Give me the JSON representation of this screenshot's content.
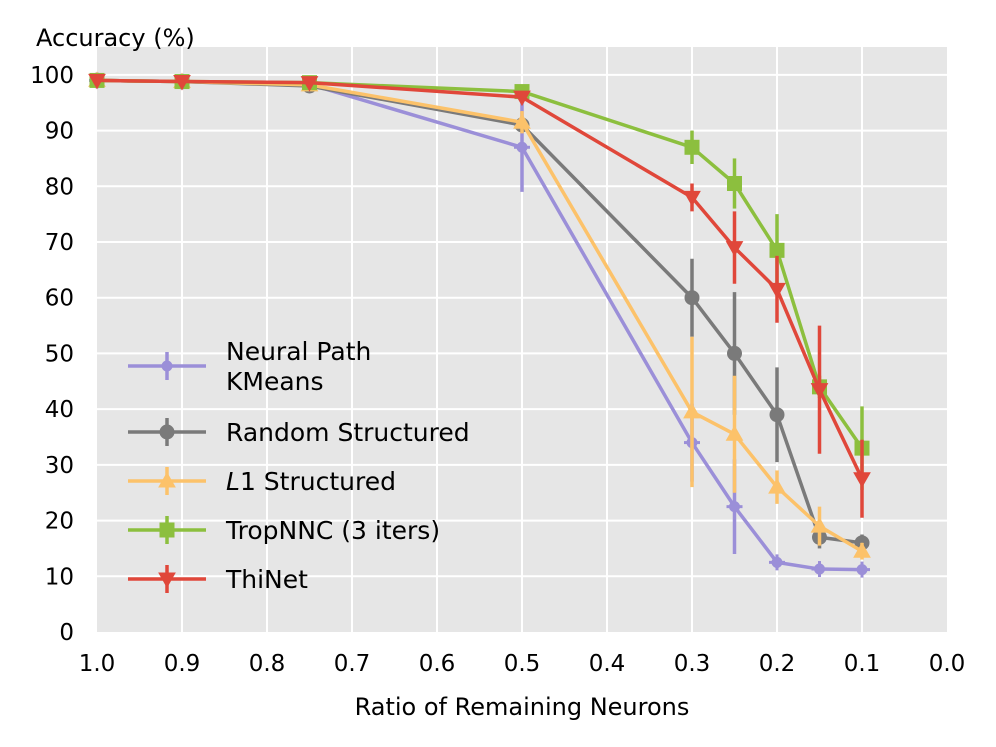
{
  "chart_data": {
    "type": "line",
    "title": "",
    "xlabel": "Ratio of Remaining Neurons",
    "ylabel": "Accuracy (%)",
    "xlim": [
      1.0,
      0.0
    ],
    "ylim": [
      0,
      105
    ],
    "x_ticks": [
      "1.0",
      "0.9",
      "0.8",
      "0.7",
      "0.6",
      "0.5",
      "0.4",
      "0.3",
      "0.2",
      "0.1",
      "0.0"
    ],
    "y_ticks": [
      "0",
      "10",
      "20",
      "30",
      "40",
      "50",
      "60",
      "70",
      "80",
      "90",
      "100"
    ],
    "grid": true,
    "legend_position": "lower-left",
    "series": [
      {
        "name": "Neural Path KMeans",
        "legend_lines": [
          "Neural Path",
          "KMeans"
        ],
        "color": "#9b8fd8",
        "marker": "plus",
        "points": [
          {
            "x": 1.0,
            "y": 99.0,
            "err": 0.3
          },
          {
            "x": 0.9,
            "y": 98.8,
            "err": 0.3
          },
          {
            "x": 0.75,
            "y": 98.3,
            "err": 0.3
          },
          {
            "x": 0.5,
            "y": 87.0,
            "err": 8.0
          },
          {
            "x": 0.3,
            "y": 34.0,
            "err": 7.0
          },
          {
            "x": 0.25,
            "y": 22.5,
            "err": 8.5
          },
          {
            "x": 0.2,
            "y": 12.5,
            "err": 1.0
          },
          {
            "x": 0.15,
            "y": 11.3,
            "err": 0.5
          },
          {
            "x": 0.1,
            "y": 11.2,
            "err": 0.5
          }
        ]
      },
      {
        "name": "Random Structured",
        "legend_lines": [
          "Random Structured"
        ],
        "color": "#7a7a7a",
        "marker": "circle",
        "points": [
          {
            "x": 1.0,
            "y": 99.0,
            "err": 0.3
          },
          {
            "x": 0.9,
            "y": 98.8,
            "err": 0.3
          },
          {
            "x": 0.75,
            "y": 98.0,
            "err": 0.5
          },
          {
            "x": 0.5,
            "y": 91.0,
            "err": 1.0
          },
          {
            "x": 0.3,
            "y": 60.0,
            "err": 7.0
          },
          {
            "x": 0.25,
            "y": 50.0,
            "err": 11.0
          },
          {
            "x": 0.2,
            "y": 39.0,
            "err": 8.5
          },
          {
            "x": 0.15,
            "y": 17.0,
            "err": 2.0
          },
          {
            "x": 0.1,
            "y": 16.0,
            "err": 1.5
          }
        ]
      },
      {
        "name": "L1 Structured",
        "legend_lines": [
          "L1 Structured"
        ],
        "legend_italic_prefix": "L",
        "legend_rest": "1 Structured",
        "color": "#fcc26a",
        "marker": "triangle-up",
        "points": [
          {
            "x": 1.0,
            "y": 99.0,
            "err": 0.3
          },
          {
            "x": 0.9,
            "y": 98.8,
            "err": 0.3
          },
          {
            "x": 0.75,
            "y": 98.2,
            "err": 0.3
          },
          {
            "x": 0.5,
            "y": 91.5,
            "err": 2.0
          },
          {
            "x": 0.3,
            "y": 39.5,
            "err": 13.5
          },
          {
            "x": 0.25,
            "y": 35.5,
            "err": 10.5
          },
          {
            "x": 0.2,
            "y": 26.0,
            "err": 3.0
          },
          {
            "x": 0.15,
            "y": 19.0,
            "err": 3.5
          },
          {
            "x": 0.1,
            "y": 14.5,
            "err": 1.5
          }
        ]
      },
      {
        "name": "TropNNC (3 iters)",
        "legend_lines": [
          "TropNNC (3 iters)"
        ],
        "color": "#8cbf3e",
        "marker": "square",
        "points": [
          {
            "x": 1.0,
            "y": 99.0,
            "err": 0.3
          },
          {
            "x": 0.9,
            "y": 98.8,
            "err": 0.3
          },
          {
            "x": 0.75,
            "y": 98.6,
            "err": 0.3
          },
          {
            "x": 0.5,
            "y": 97.0,
            "err": 0.5
          },
          {
            "x": 0.3,
            "y": 87.0,
            "err": 3.0
          },
          {
            "x": 0.25,
            "y": 80.5,
            "err": 4.5
          },
          {
            "x": 0.2,
            "y": 68.5,
            "err": 6.5
          },
          {
            "x": 0.15,
            "y": 44.0,
            "err": 2.0
          },
          {
            "x": 0.1,
            "y": 33.0,
            "err": 7.5
          }
        ]
      },
      {
        "name": "ThiNet",
        "legend_lines": [
          "ThiNet"
        ],
        "color": "#e0473a",
        "marker": "triangle-down",
        "points": [
          {
            "x": 1.0,
            "y": 99.0,
            "err": 0.3
          },
          {
            "x": 0.9,
            "y": 98.8,
            "err": 0.3
          },
          {
            "x": 0.75,
            "y": 98.6,
            "err": 0.3
          },
          {
            "x": 0.5,
            "y": 96.0,
            "err": 0.8
          },
          {
            "x": 0.3,
            "y": 78.0,
            "err": 2.5
          },
          {
            "x": 0.25,
            "y": 69.0,
            "err": 6.5
          },
          {
            "x": 0.2,
            "y": 61.5,
            "err": 6.0
          },
          {
            "x": 0.15,
            "y": 43.5,
            "err": 11.5
          },
          {
            "x": 0.1,
            "y": 27.5,
            "err": 7.0
          }
        ]
      }
    ]
  }
}
